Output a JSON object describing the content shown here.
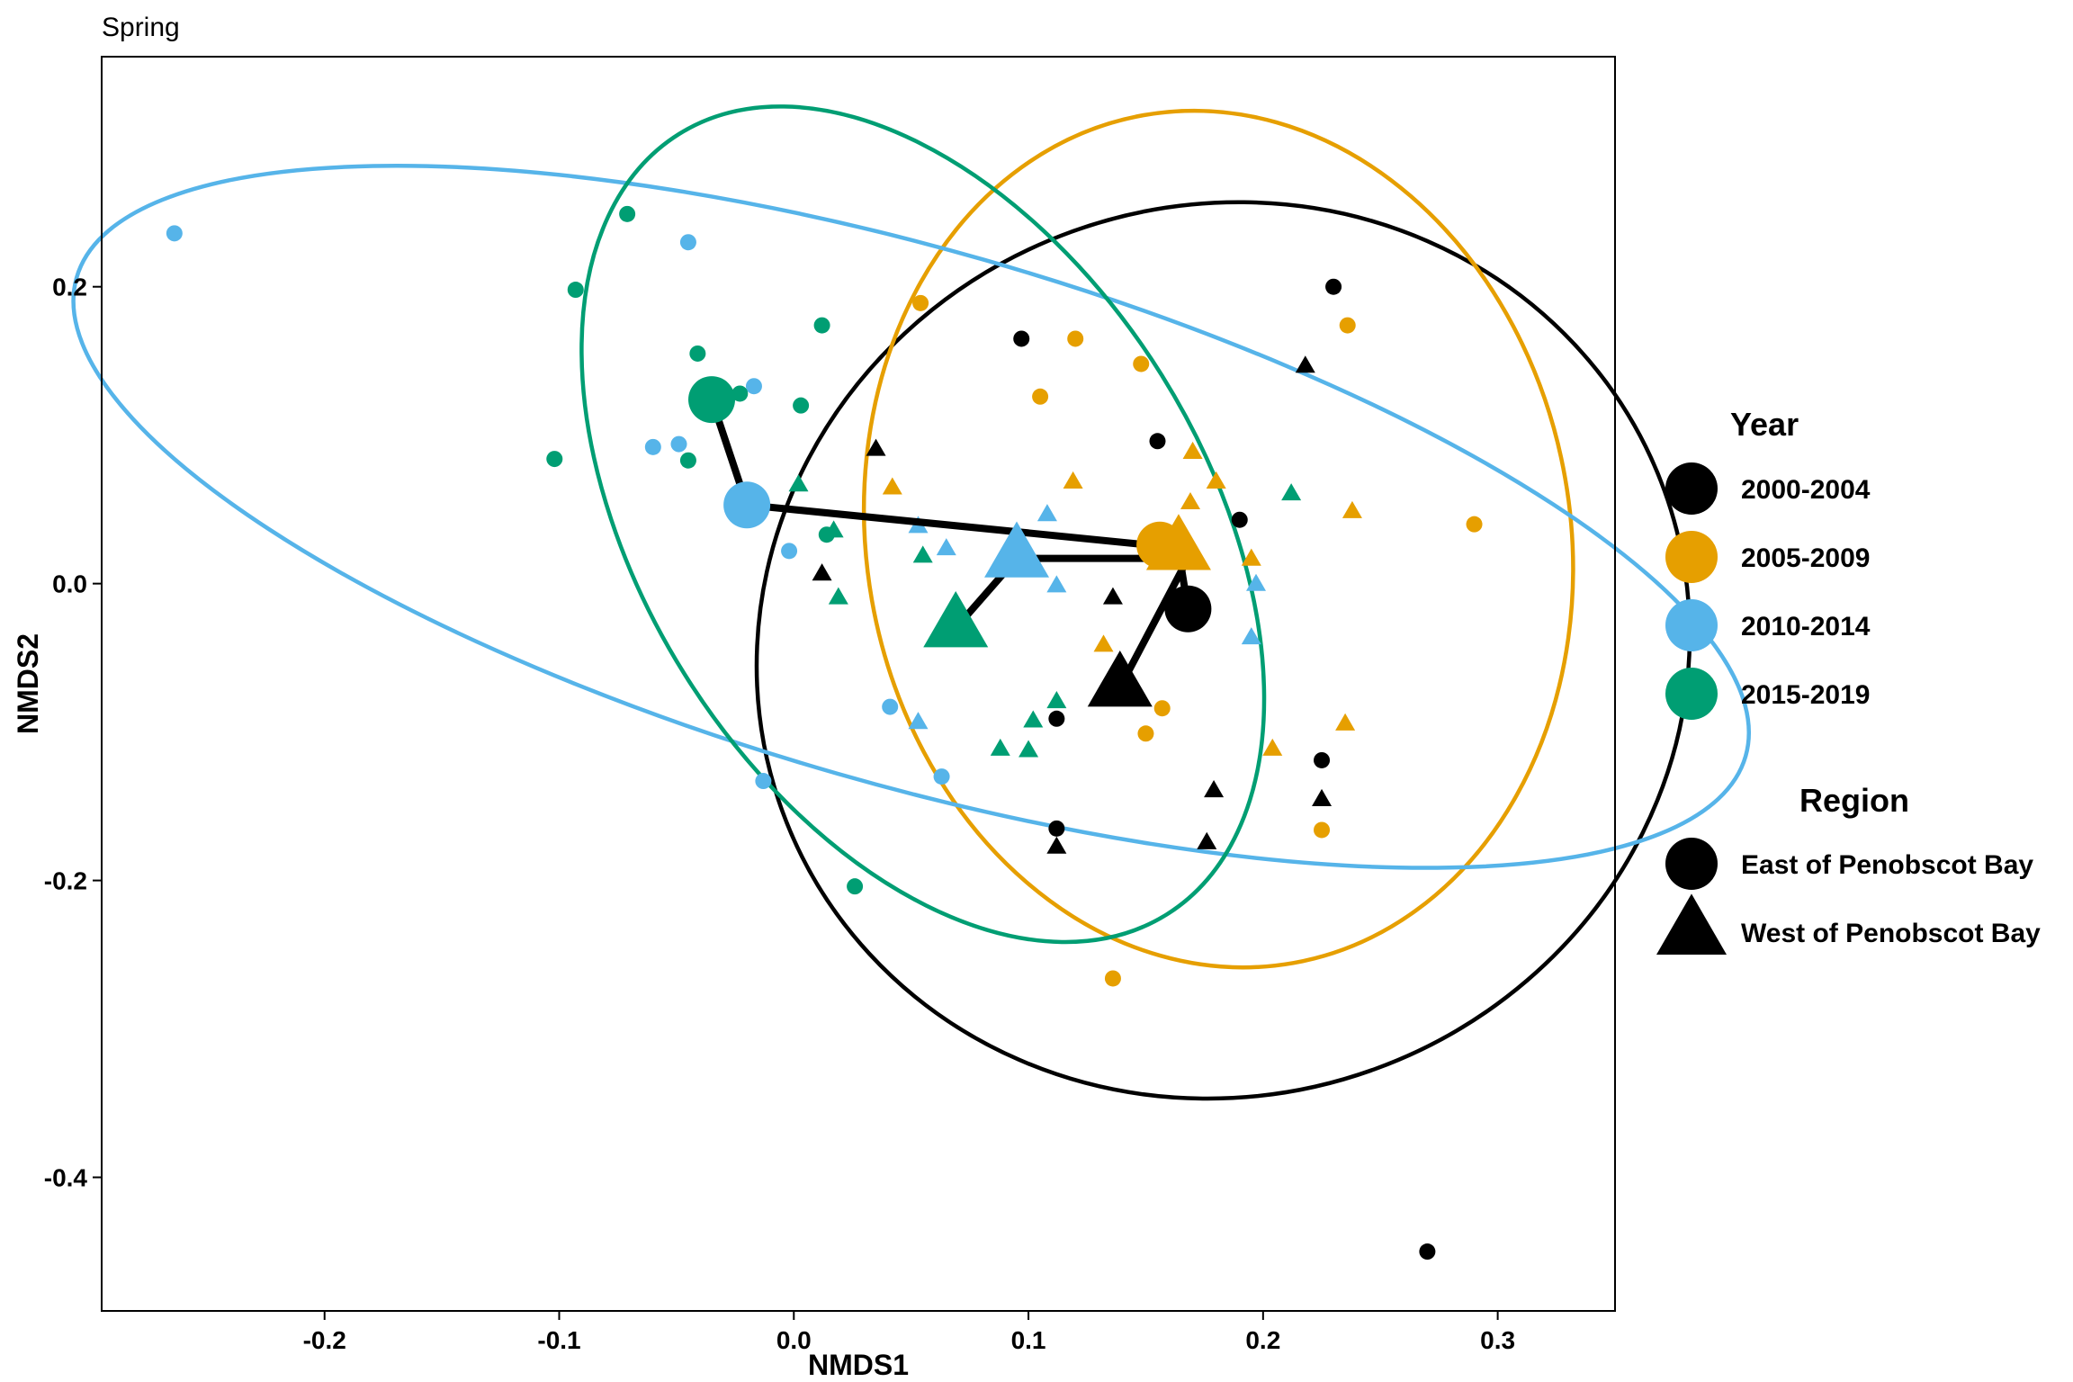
{
  "chart_data": {
    "type": "scatter",
    "title": "Spring",
    "xlabel": "NMDS1",
    "ylabel": "NMDS2",
    "xlim": [
      -0.295,
      0.35
    ],
    "ylim": [
      -0.49,
      0.355
    ],
    "xticks": [
      -0.2,
      -0.1,
      0.0,
      0.1,
      0.2,
      0.3
    ],
    "xtick_labels": [
      "-0.2",
      "-0.1",
      "0.0",
      "0.1",
      "0.2",
      "0.3"
    ],
    "yticks": [
      0.2,
      0.0,
      -0.2,
      -0.4
    ],
    "ytick_labels": [
      "0.2",
      "0.0",
      "-0.2",
      "-0.4"
    ],
    "grid": false,
    "legend_placement": "right",
    "year_legend": {
      "title": "Year",
      "items": [
        {
          "label": "2000-2004",
          "color": "#000000"
        },
        {
          "label": "2005-2009",
          "color": "#E69F00"
        },
        {
          "label": "2010-2014",
          "color": "#56B4E9"
        },
        {
          "label": "2015-2019",
          "color": "#009E73"
        }
      ]
    },
    "region_legend": {
      "title": "Region",
      "items": [
        {
          "label": "East of Penobscot Bay",
          "shape": "circle"
        },
        {
          "label": "West of Penobscot Bay",
          "shape": "triangle"
        }
      ]
    },
    "series": [
      {
        "group": "2000-2004",
        "color": "#000000",
        "east": [
          [
            0.097,
            0.165
          ],
          [
            0.155,
            0.096
          ],
          [
            0.19,
            0.043
          ],
          [
            0.23,
            0.2
          ],
          [
            0.112,
            -0.091
          ],
          [
            0.112,
            -0.165
          ],
          [
            0.225,
            -0.119
          ],
          [
            0.27,
            -0.45
          ]
        ],
        "west": [
          [
            0.035,
            0.09
          ],
          [
            0.012,
            0.006
          ],
          [
            0.136,
            -0.01
          ],
          [
            0.218,
            0.146
          ],
          [
            0.112,
            -0.178
          ],
          [
            0.179,
            -0.14
          ],
          [
            0.176,
            -0.175
          ],
          [
            0.225,
            -0.146
          ]
        ],
        "centroid_east": [
          0.168,
          -0.017
        ],
        "centroid_west": [
          0.139,
          -0.07
        ],
        "ellipse": {
          "cx": 0.183,
          "cy": -0.045,
          "rx": 0.2,
          "ry": 0.3,
          "angle": -20
        }
      },
      {
        "group": "2005-2009",
        "color": "#E69F00",
        "east": [
          [
            0.054,
            0.189
          ],
          [
            0.12,
            0.165
          ],
          [
            0.148,
            0.148
          ],
          [
            0.105,
            0.126
          ],
          [
            0.236,
            0.174
          ],
          [
            0.29,
            0.04
          ],
          [
            0.15,
            -0.101
          ],
          [
            0.157,
            -0.084
          ],
          [
            0.136,
            -0.266
          ],
          [
            0.225,
            -0.166
          ]
        ],
        "west": [
          [
            0.042,
            0.064
          ],
          [
            0.119,
            0.068
          ],
          [
            0.17,
            0.088
          ],
          [
            0.169,
            0.054
          ],
          [
            0.18,
            0.068
          ],
          [
            0.238,
            0.048
          ],
          [
            0.195,
            0.016
          ],
          [
            0.132,
            -0.042
          ],
          [
            0.204,
            -0.112
          ],
          [
            0.235,
            -0.095
          ]
        ],
        "centroid_east": [
          0.156,
          0.026
        ],
        "centroid_west": [
          0.164,
          0.022
        ],
        "ellipse": {
          "cx": 0.181,
          "cy": 0.03,
          "rx": 0.15,
          "ry": 0.29,
          "angle": -10
        }
      },
      {
        "group": "2010-2014",
        "color": "#56B4E9",
        "east": [
          [
            -0.264,
            0.236
          ],
          [
            -0.045,
            0.23
          ],
          [
            -0.017,
            0.133
          ],
          [
            -0.06,
            0.092
          ],
          [
            -0.049,
            0.094
          ],
          [
            -0.002,
            0.022
          ],
          [
            0.041,
            -0.083
          ],
          [
            0.063,
            -0.13
          ],
          [
            -0.013,
            -0.133
          ]
        ],
        "west": [
          [
            0.053,
            0.038
          ],
          [
            0.065,
            0.023
          ],
          [
            0.108,
            0.046
          ],
          [
            0.112,
            -0.002
          ],
          [
            0.197,
            -0.001
          ],
          [
            0.195,
            -0.037
          ],
          [
            0.053,
            -0.094
          ]
        ],
        "centroid_east": [
          -0.02,
          0.053
        ],
        "centroid_west": [
          0.095,
          0.017
        ],
        "ellipse": {
          "cx": 0.05,
          "cy": 0.045,
          "rx": 0.37,
          "ry": 0.18,
          "angle": 16
        }
      },
      {
        "group": "2015-2019",
        "color": "#009E73",
        "east": [
          [
            -0.071,
            0.249
          ],
          [
            -0.093,
            0.198
          ],
          [
            0.012,
            0.174
          ],
          [
            -0.041,
            0.155
          ],
          [
            -0.023,
            0.128
          ],
          [
            0.003,
            0.12
          ],
          [
            -0.102,
            0.084
          ],
          [
            -0.045,
            0.083
          ],
          [
            0.014,
            0.033
          ],
          [
            0.026,
            -0.204
          ]
        ],
        "west": [
          [
            0.002,
            0.066
          ],
          [
            0.017,
            0.035
          ],
          [
            0.055,
            0.018
          ],
          [
            0.019,
            -0.01
          ],
          [
            0.102,
            -0.093
          ],
          [
            0.088,
            -0.112
          ],
          [
            0.1,
            -0.113
          ],
          [
            0.112,
            -0.08
          ],
          [
            0.212,
            0.06
          ]
        ],
        "centroid_east": [
          -0.035,
          0.124
        ],
        "centroid_west": [
          0.069,
          -0.03
        ],
        "ellipse": {
          "cx": 0.055,
          "cy": 0.04,
          "rx": 0.12,
          "ry": 0.31,
          "angle": -32
        }
      }
    ],
    "trajectory": [
      [
        -0.035,
        0.124
      ],
      [
        -0.02,
        0.053
      ],
      [
        0.158,
        0.025
      ],
      [
        0.164,
        0.022
      ],
      [
        0.168,
        -0.017
      ]
    ],
    "trajectory_west": [
      [
        0.069,
        -0.03
      ],
      [
        0.095,
        0.017
      ],
      [
        0.168,
        0.017
      ],
      [
        0.139,
        -0.07
      ]
    ]
  }
}
